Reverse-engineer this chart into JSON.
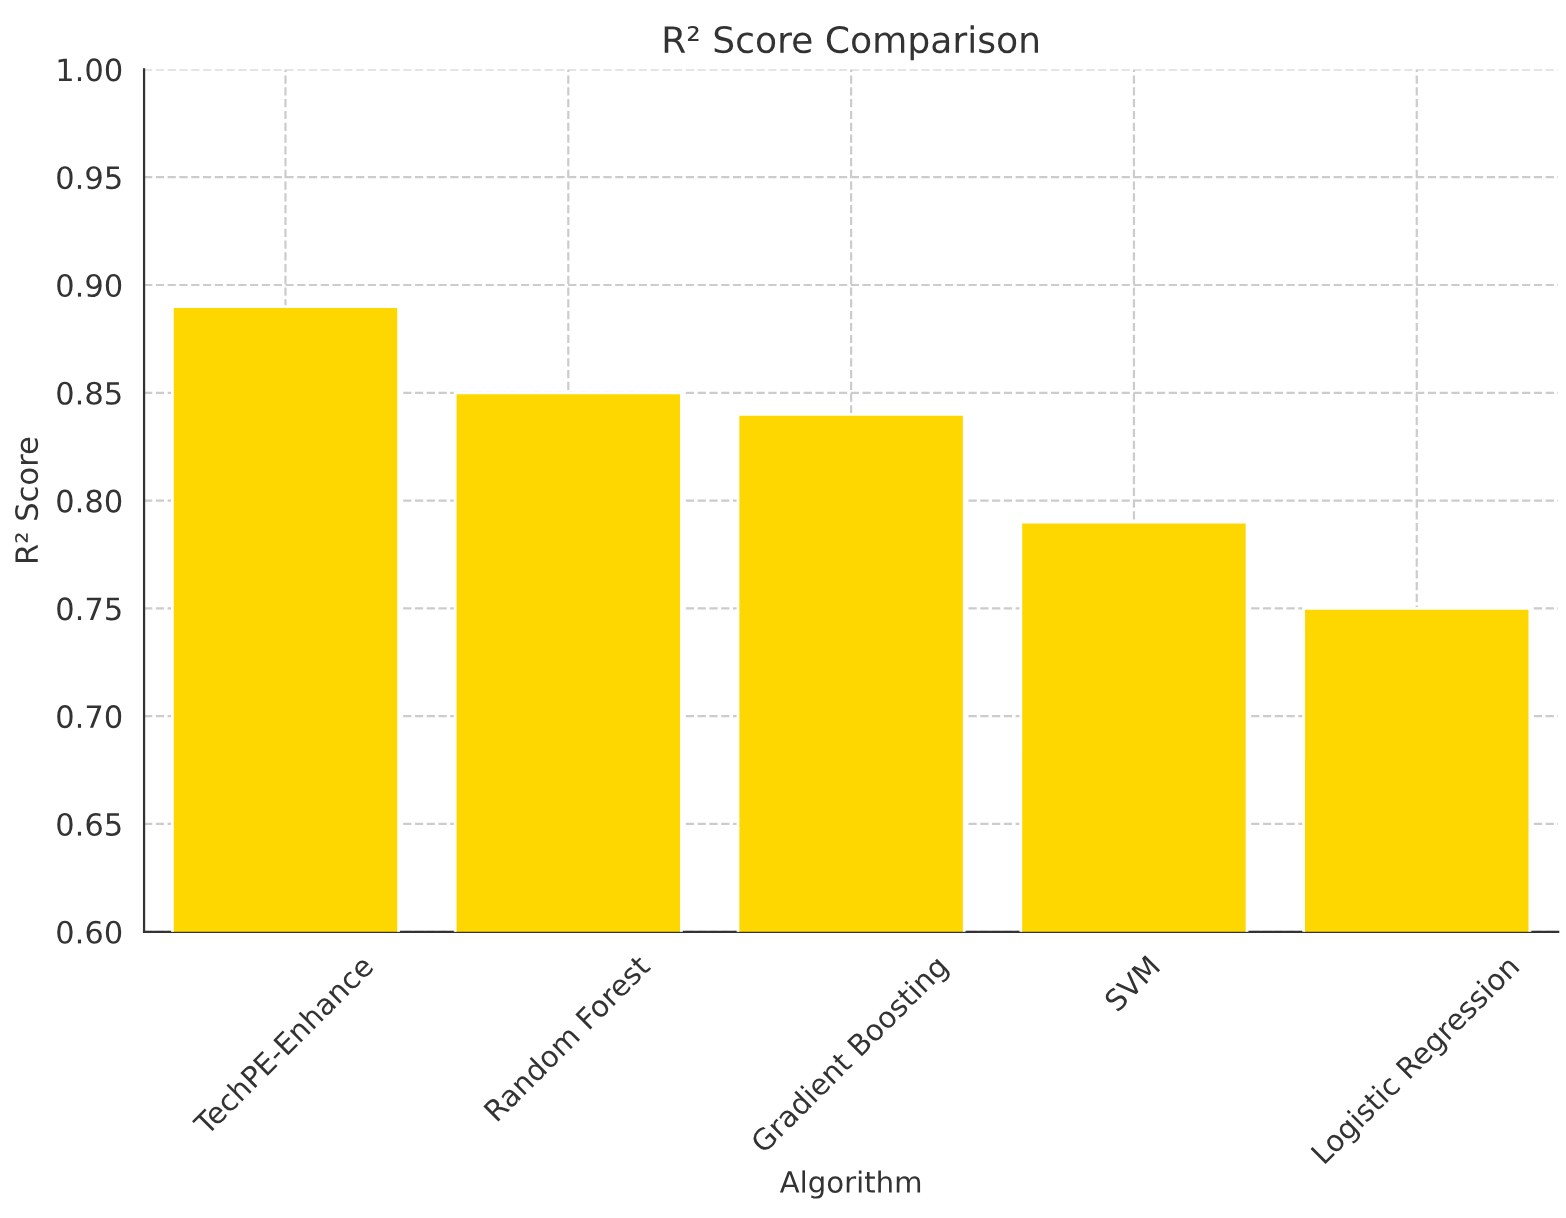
{
  "chart_data": {
    "type": "bar",
    "title": "R² Score Comparison",
    "xlabel": "Algorithm",
    "ylabel": "R² Score",
    "categories": [
      "TechPE-Enhance",
      "Random Forest",
      "Gradient Boosting",
      "SVM",
      "Logistic Regression"
    ],
    "values": [
      0.89,
      0.85,
      0.84,
      0.79,
      0.75
    ],
    "color": "#ffd700",
    "ylim": [
      0.6,
      1.0
    ],
    "yticks": [
      {
        "value": 0.6,
        "label": "0.60"
      },
      {
        "value": 0.65,
        "label": "0.65"
      },
      {
        "value": 0.7,
        "label": "0.70"
      },
      {
        "value": 0.75,
        "label": "0.75"
      },
      {
        "value": 0.8,
        "label": "0.80"
      },
      {
        "value": 0.85,
        "label": "0.85"
      },
      {
        "value": 0.9,
        "label": "0.90"
      },
      {
        "value": 0.95,
        "label": "0.95"
      },
      {
        "value": 1.0,
        "label": "1.00"
      }
    ],
    "grid": true
  }
}
